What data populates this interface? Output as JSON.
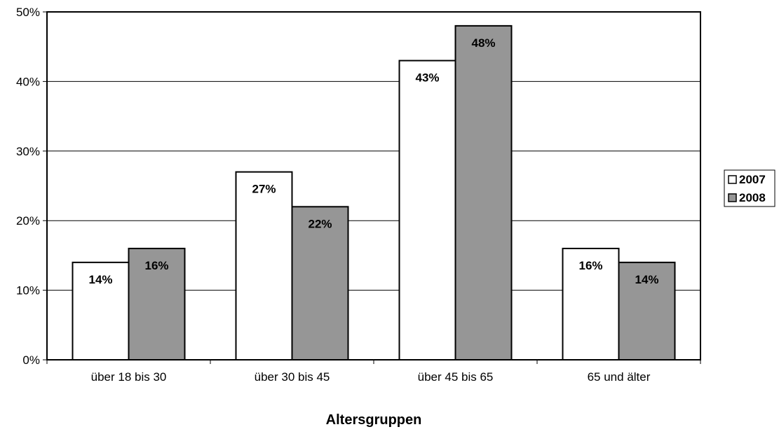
{
  "chart_data": {
    "type": "bar",
    "title": "",
    "xlabel": "Altersgruppen",
    "ylabel": "",
    "categories": [
      "über 18 bis 30",
      "über 30 bis 45",
      "über 45 bis 65",
      "65 und älter"
    ],
    "series": [
      {
        "name": "2007",
        "values": [
          14,
          27,
          43,
          16
        ],
        "labels": [
          "14%",
          "27%",
          "43%",
          "16%"
        ],
        "color": "#ffffff"
      },
      {
        "name": "2008",
        "values": [
          16,
          22,
          48,
          14
        ],
        "labels": [
          "16%",
          "22%",
          "48%",
          "14%"
        ],
        "color": "#969696"
      }
    ],
    "ylim": [
      0,
      50
    ],
    "yticks": [
      0,
      10,
      20,
      30,
      40,
      50
    ],
    "ytick_labels": [
      "0%",
      "10%",
      "20%",
      "30%",
      "40%",
      "50%"
    ],
    "grid": true,
    "legend_position": "right"
  }
}
